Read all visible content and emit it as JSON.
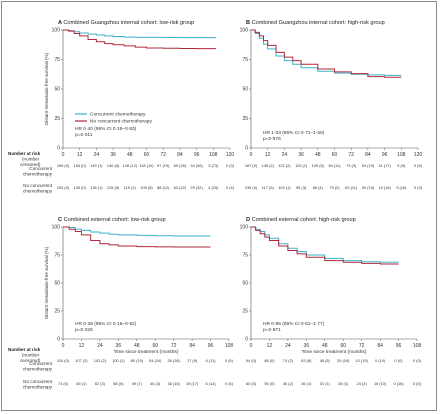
{
  "colors": {
    "concurrent": "#3bb3c9",
    "no_concurrent": "#b0283a",
    "axis": "#555555"
  },
  "legend": {
    "concurrent": "Concurrent chemotherapy",
    "no_concurrent": "No concurrent chemotherapy"
  },
  "risk_table": {
    "header": [
      "Number at risk",
      "(number",
      "censored)"
    ],
    "row_labels": [
      [
        "Concurrent",
        "chemotherapy"
      ],
      [
        "No concurrent",
        "chemotherapy"
      ]
    ]
  },
  "chart_data": [
    {
      "type": "line",
      "panel": "A",
      "title": "Combined Guangzhou internal cohort: low-risk group",
      "ylabel": "Distant metastasis-free survival (%)",
      "xlabel": "",
      "xlim": [
        0,
        120
      ],
      "ylim": [
        0,
        100
      ],
      "xticks": [
        0,
        12,
        24,
        36,
        48,
        60,
        72,
        84,
        96,
        108,
        120
      ],
      "yticks": [
        0,
        25,
        50,
        75,
        100
      ],
      "hr_lines": [
        "HR 0·40 (95% CI 0·19–0·83)",
        "p=0·011"
      ],
      "show_legend": true,
      "series": [
        {
          "name": "Concurrent chemotherapy",
          "key": "concurrent",
          "x": [
            0,
            4,
            8,
            12,
            18,
            24,
            30,
            36,
            44,
            52,
            60,
            72,
            84,
            96,
            110
          ],
          "y": [
            100,
            99.5,
            98.5,
            97.5,
            96.5,
            95.8,
            95,
            94.5,
            94,
            93.8,
            93.7,
            93.6,
            93.5,
            93.5,
            93.5
          ]
        },
        {
          "name": "No concurrent chemotherapy",
          "key": "no_concurrent",
          "x": [
            0,
            4,
            8,
            12,
            18,
            24,
            30,
            36,
            44,
            52,
            60,
            72,
            84,
            96,
            110
          ],
          "y": [
            100,
            99,
            97,
            95,
            92,
            90,
            88.5,
            87.5,
            86.5,
            85.5,
            84.8,
            84.5,
            84.3,
            84.2,
            84.2
          ]
        }
      ],
      "risk": {
        "concurrent": [
          "159 (0)",
          "154 (0)",
          "149 (1)",
          "140 (6)",
          "128 (12)",
          "118 (10)",
          "97 (19)",
          "69 (26)",
          "34 (46)",
          "3 (73)",
          "0 (3)"
        ],
        "no_concurrent": [
          "153 (0)",
          "145 (0)",
          "136 (1)",
          "125 (5)",
          "115 (2)",
          "105 (8)",
          "88 (12)",
          "63 (22)",
          "29 (32)",
          "4 (25)",
          "0 (4)"
        ]
      }
    },
    {
      "type": "line",
      "panel": "B",
      "title": "Combined Guangzhou internal cohort: high-risk group",
      "ylabel": "",
      "xlabel": "",
      "xlim": [
        0,
        120
      ],
      "ylim": [
        0,
        100
      ],
      "xticks": [
        0,
        12,
        24,
        36,
        48,
        60,
        72,
        84,
        96,
        108,
        120
      ],
      "yticks": [
        0,
        25,
        50,
        75,
        100
      ],
      "hr_lines": [
        "HR 1·03 (95% CI 0·71–1·50)",
        "p=0·876"
      ],
      "show_legend": false,
      "series": [
        {
          "name": "Concurrent chemotherapy",
          "key": "concurrent",
          "x": [
            0,
            3,
            6,
            9,
            12,
            18,
            24,
            30,
            36,
            48,
            60,
            72,
            84,
            96,
            108
          ],
          "y": [
            100,
            97,
            93,
            88,
            84,
            78,
            74,
            71,
            68,
            65,
            63.5,
            62.5,
            62,
            61.5,
            61.5
          ]
        },
        {
          "name": "No concurrent chemotherapy",
          "key": "no_concurrent",
          "x": [
            0,
            3,
            6,
            9,
            12,
            18,
            24,
            30,
            36,
            48,
            60,
            72,
            84,
            96,
            108
          ],
          "y": [
            100,
            98,
            95,
            91,
            87,
            81,
            77,
            74,
            71,
            67,
            64.5,
            63,
            60.5,
            60,
            60
          ]
        }
      ],
      "risk": {
        "concurrent": [
          "167 (0)",
          "145 (2)",
          "122 (2)",
          "110 (2)",
          "100 (5)",
          "84 (11)",
          "73 (9)",
          "53 (19)",
          "31 (17)",
          "5 (9)",
          "0 (5)"
        ],
        "no_concurrent": [
          "135 (0)",
          "117 (0)",
          "103 (1)",
          "95 (3)",
          "85 (4)",
          "75 (2)",
          "63 (11)",
          "39 (15)",
          "19 (18)",
          "3 (16)",
          "0 (3)"
        ]
      }
    },
    {
      "type": "line",
      "panel": "C",
      "title": "Combined external cohort: low-risk group",
      "ylabel": "Distant metastasis-free survival (%)",
      "xlabel": "Time since treatment (months)",
      "xlim": [
        0,
        108
      ],
      "ylim": [
        0,
        100
      ],
      "xticks": [
        0,
        12,
        24,
        36,
        48,
        60,
        72,
        84,
        96,
        108
      ],
      "yticks": [
        0,
        25,
        50,
        75,
        100
      ],
      "hr_lines": [
        "HR 0·38 (95% CI 0·16–0·92)",
        "p=0·026"
      ],
      "show_legend": false,
      "series": [
        {
          "name": "Concurrent chemotherapy",
          "key": "concurrent",
          "x": [
            0,
            4,
            8,
            12,
            18,
            24,
            30,
            36,
            48,
            60,
            72,
            84,
            96
          ],
          "y": [
            100,
            99.5,
            98,
            97,
            95.5,
            94.5,
            93.5,
            93,
            92.5,
            92.2,
            92,
            92,
            92
          ]
        },
        {
          "name": "No concurrent chemotherapy",
          "key": "no_concurrent",
          "x": [
            0,
            4,
            8,
            12,
            18,
            24,
            30,
            36,
            48,
            60,
            72,
            84,
            96
          ],
          "y": [
            100,
            98,
            96,
            93,
            88,
            85,
            84,
            83,
            82.5,
            82.3,
            82.2,
            82.2,
            82.2
          ]
        }
      ],
      "risk": {
        "concurrent": [
          "110 (0)",
          "107 (2)",
          "102 (2)",
          "100 (1)",
          "80 (19)",
          "54 (24)",
          "26 (28)",
          "17 (9)",
          "6 (11)",
          "0 (6)"
        ],
        "no_concurrent": [
          "73 (0)",
          "65 (1)",
          "62 (3)",
          "58 (0)",
          "49 (7)",
          "46 (3)",
          "36 (10)",
          "19 (17)",
          "6 (13)",
          "0 (6)"
        ]
      }
    },
    {
      "type": "line",
      "panel": "D",
      "title": "Combined external cohort: high-risk group",
      "ylabel": "",
      "xlabel": "Time since treatment (months)",
      "xlim": [
        0,
        108
      ],
      "ylim": [
        0,
        100
      ],
      "xticks": [
        0,
        12,
        24,
        36,
        48,
        60,
        72,
        84,
        96,
        108
      ],
      "yticks": [
        0,
        25,
        50,
        75,
        100
      ],
      "hr_lines": [
        "HR 0·95 (95% CI 0·51–1·77)",
        "p=0·871"
      ],
      "show_legend": false,
      "series": [
        {
          "name": "Concurrent chemotherapy",
          "key": "concurrent",
          "x": [
            0,
            3,
            6,
            9,
            12,
            18,
            24,
            30,
            36,
            48,
            60,
            72,
            84,
            96
          ],
          "y": [
            100,
            98,
            96,
            93,
            90,
            85,
            81,
            78,
            75,
            72,
            70,
            69,
            68.5,
            68.5
          ]
        },
        {
          "name": "No concurrent chemotherapy",
          "key": "no_concurrent",
          "x": [
            0,
            3,
            6,
            9,
            12,
            18,
            24,
            30,
            36,
            48,
            60,
            72,
            84,
            96
          ],
          "y": [
            100,
            97,
            94,
            91,
            88,
            83,
            79,
            76,
            73,
            70,
            68.5,
            67.5,
            67,
            67
          ]
        }
      ],
      "risk": {
        "concurrent": [
          "94 (0)",
          "88 (0)",
          "74 (2)",
          "63 (6)",
          "48 (5)",
          "29 (19)",
          "10 (19)",
          "0 (10)",
          "0 (0)",
          "0 (0)"
        ],
        "no_concurrent": [
          "60 (0)",
          "55 (0)",
          "46 (2)",
          "36 (1)",
          "31 (1)",
          "28 (1)",
          "24 (3)",
          "16 (10)",
          "0 (16)",
          "0 (0)"
        ]
      }
    }
  ]
}
